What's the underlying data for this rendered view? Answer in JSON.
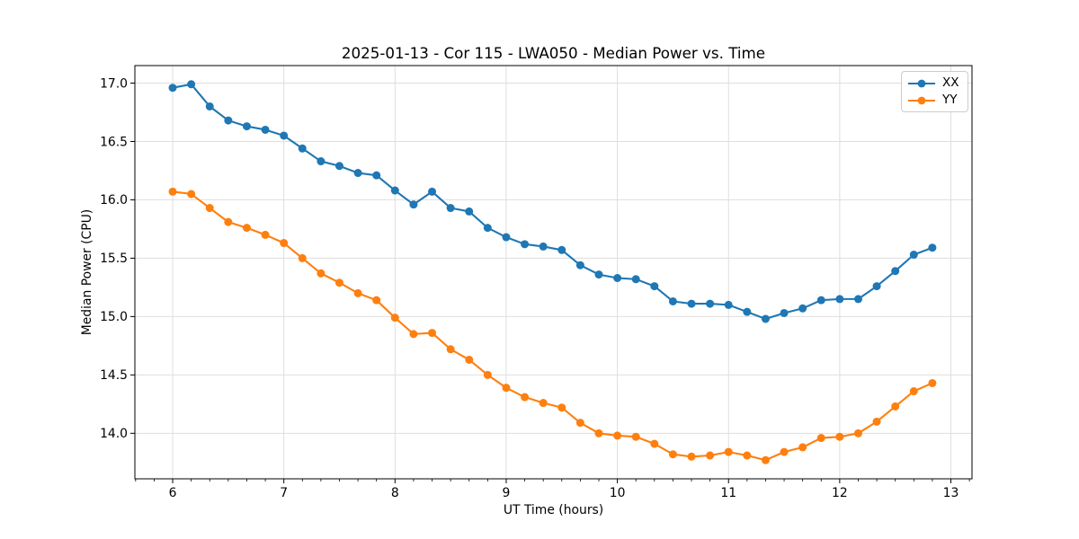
{
  "style": {
    "background": "#ffffff",
    "grid_color": "#dedede",
    "spine_color": "#000000",
    "tick_color": "#000000",
    "text_color": "#000000",
    "legend_border_color": "#cccccc"
  },
  "chart_data": {
    "type": "line",
    "title": "2025-01-13 - Cor 115 - LWA050 - Median Power vs. Time",
    "xlabel": "UT Time (hours)",
    "ylabel": "Median Power (CPU)",
    "xlim": [
      5.66,
      13.19
    ],
    "ylim": [
      13.61,
      17.15
    ],
    "x_ticks": [
      6,
      7,
      8,
      9,
      10,
      11,
      12,
      13
    ],
    "y_ticks": [
      14.0,
      14.5,
      15.0,
      15.5,
      16.0,
      16.5,
      17.0
    ],
    "x_minor_tick_interval": 0.166667,
    "grid": true,
    "legend_position": "upper right",
    "x": [
      6.0,
      6.1667,
      6.3333,
      6.5,
      6.6667,
      6.8333,
      7.0,
      7.1667,
      7.3333,
      7.5,
      7.6667,
      7.8333,
      8.0,
      8.1667,
      8.3333,
      8.5,
      8.6667,
      8.8333,
      9.0,
      9.1667,
      9.3333,
      9.5,
      9.6667,
      9.8333,
      10.0,
      10.1667,
      10.3333,
      10.5,
      10.6667,
      10.8333,
      11.0,
      11.1667,
      11.3333,
      11.5,
      11.6667,
      11.8333,
      12.0,
      12.1667,
      12.3333,
      12.5,
      12.6667,
      12.8333
    ],
    "series": [
      {
        "name": "XX",
        "color": "#1f77b4",
        "marker": "circle",
        "values": [
          16.96,
          16.99,
          16.8,
          16.68,
          16.63,
          16.6,
          16.55,
          16.44,
          16.33,
          16.29,
          16.23,
          16.21,
          16.08,
          15.96,
          16.07,
          15.93,
          15.9,
          15.76,
          15.68,
          15.62,
          15.6,
          15.57,
          15.44,
          15.36,
          15.33,
          15.32,
          15.26,
          15.13,
          15.11,
          15.11,
          15.1,
          15.04,
          14.98,
          15.03,
          15.07,
          15.14,
          15.15,
          15.15,
          15.26,
          15.39,
          15.53,
          15.59
        ]
      },
      {
        "name": "YY",
        "color": "#ff7f0e",
        "marker": "circle",
        "values": [
          16.07,
          16.05,
          15.93,
          15.81,
          15.76,
          15.7,
          15.63,
          15.5,
          15.37,
          15.29,
          15.2,
          15.14,
          14.99,
          14.85,
          14.86,
          14.72,
          14.63,
          14.5,
          14.39,
          14.31,
          14.26,
          14.22,
          14.09,
          14.0,
          13.98,
          13.97,
          13.91,
          13.82,
          13.8,
          13.81,
          13.84,
          13.81,
          13.77,
          13.84,
          13.88,
          13.96,
          13.97,
          14.0,
          14.1,
          14.23,
          14.36,
          14.43
        ]
      }
    ]
  }
}
